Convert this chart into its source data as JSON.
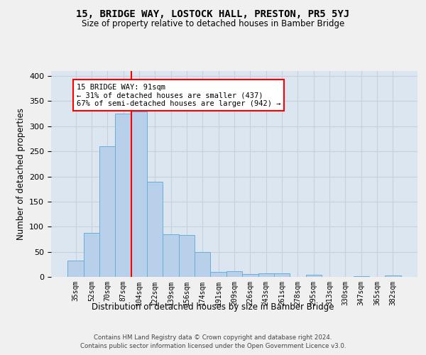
{
  "title": "15, BRIDGE WAY, LOSTOCK HALL, PRESTON, PR5 5YJ",
  "subtitle": "Size of property relative to detached houses in Bamber Bridge",
  "xlabel": "Distribution of detached houses by size in Bamber Bridge",
  "ylabel": "Number of detached properties",
  "footer_line1": "Contains HM Land Registry data © Crown copyright and database right 2024.",
  "footer_line2": "Contains public sector information licensed under the Open Government Licence v3.0.",
  "categories": [
    "35sqm",
    "52sqm",
    "70sqm",
    "87sqm",
    "104sqm",
    "122sqm",
    "139sqm",
    "156sqm",
    "174sqm",
    "191sqm",
    "209sqm",
    "226sqm",
    "243sqm",
    "261sqm",
    "278sqm",
    "295sqm",
    "313sqm",
    "330sqm",
    "347sqm",
    "365sqm",
    "382sqm"
  ],
  "values": [
    33,
    88,
    260,
    325,
    330,
    190,
    85,
    83,
    50,
    10,
    11,
    5,
    7,
    7,
    0,
    4,
    0,
    0,
    2,
    0,
    3
  ],
  "bar_color": "#b8d0ea",
  "bar_edge_color": "#6aaed6",
  "vline_x": 3.5,
  "vline_color": "red",
  "annotation_text": "15 BRIDGE WAY: 91sqm\n← 31% of detached houses are smaller (437)\n67% of semi-detached houses are larger (942) →",
  "annotation_box_color": "white",
  "annotation_box_edge_color": "red",
  "ylim": [
    0,
    410
  ],
  "yticks": [
    0,
    50,
    100,
    150,
    200,
    250,
    300,
    350,
    400
  ],
  "grid_color": "#c8d0dc",
  "bg_color": "#dce6f0",
  "fig_bg_color": "#f0f0f0"
}
